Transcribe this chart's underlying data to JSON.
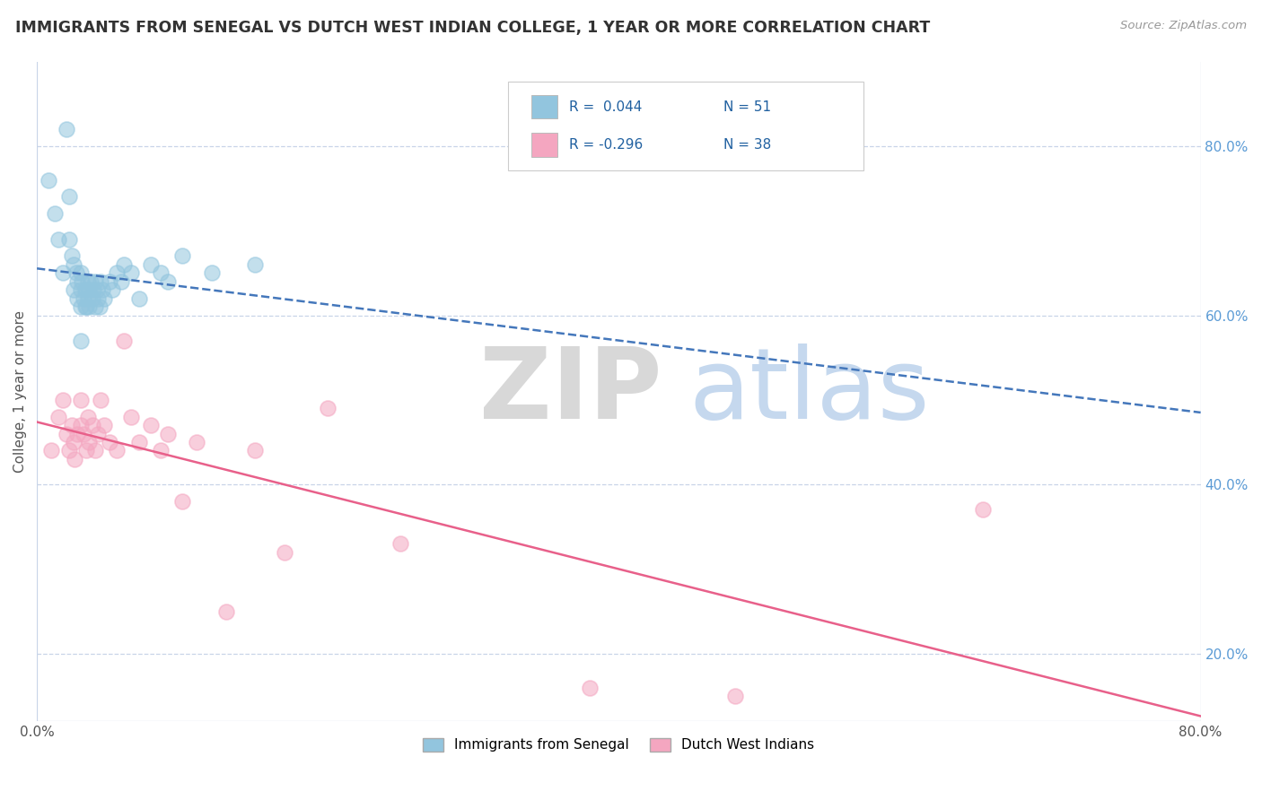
{
  "title": "IMMIGRANTS FROM SENEGAL VS DUTCH WEST INDIAN COLLEGE, 1 YEAR OR MORE CORRELATION CHART",
  "source_text": "Source: ZipAtlas.com",
  "ylabel": "College, 1 year or more",
  "xlim": [
    0.0,
    0.8
  ],
  "ylim": [
    0.12,
    0.9
  ],
  "x_tick_labels": [
    "0.0%",
    "80.0%"
  ],
  "x_tick_vals": [
    0.0,
    0.8
  ],
  "y_tick_labels_right": [
    "20.0%",
    "40.0%",
    "60.0%",
    "80.0%"
  ],
  "y_tick_values_right": [
    0.2,
    0.4,
    0.6,
    0.8
  ],
  "legend_r1": "R =  0.044",
  "legend_n1": "N = 51",
  "legend_r2": "R = -0.296",
  "legend_n2": "N = 38",
  "blue_color": "#92c5de",
  "pink_color": "#f4a6c0",
  "blue_line_color": "#4477bb",
  "pink_line_color": "#e8608a",
  "grid_color": "#c8d4e8",
  "blue_scatter_x": [
    0.008,
    0.012,
    0.015,
    0.018,
    0.02,
    0.022,
    0.022,
    0.024,
    0.025,
    0.025,
    0.027,
    0.028,
    0.028,
    0.03,
    0.03,
    0.03,
    0.031,
    0.032,
    0.033,
    0.033,
    0.034,
    0.034,
    0.035,
    0.035,
    0.036,
    0.036,
    0.037,
    0.038,
    0.039,
    0.04,
    0.04,
    0.041,
    0.042,
    0.043,
    0.044,
    0.045,
    0.046,
    0.05,
    0.052,
    0.055,
    0.058,
    0.06,
    0.065,
    0.07,
    0.078,
    0.085,
    0.09,
    0.1,
    0.12,
    0.15,
    0.03
  ],
  "blue_scatter_y": [
    0.76,
    0.72,
    0.69,
    0.65,
    0.82,
    0.74,
    0.69,
    0.67,
    0.66,
    0.63,
    0.65,
    0.64,
    0.62,
    0.65,
    0.63,
    0.61,
    0.64,
    0.62,
    0.63,
    0.61,
    0.63,
    0.61,
    0.64,
    0.62,
    0.63,
    0.61,
    0.64,
    0.62,
    0.63,
    0.64,
    0.61,
    0.63,
    0.62,
    0.61,
    0.64,
    0.63,
    0.62,
    0.64,
    0.63,
    0.65,
    0.64,
    0.66,
    0.65,
    0.62,
    0.66,
    0.65,
    0.64,
    0.67,
    0.65,
    0.66,
    0.57
  ],
  "pink_scatter_x": [
    0.01,
    0.015,
    0.018,
    0.02,
    0.022,
    0.024,
    0.025,
    0.026,
    0.028,
    0.03,
    0.03,
    0.032,
    0.034,
    0.035,
    0.036,
    0.038,
    0.04,
    0.042,
    0.044,
    0.046,
    0.05,
    0.055,
    0.06,
    0.065,
    0.07,
    0.078,
    0.085,
    0.09,
    0.1,
    0.11,
    0.13,
    0.15,
    0.17,
    0.2,
    0.25,
    0.38,
    0.48,
    0.65
  ],
  "pink_scatter_y": [
    0.44,
    0.48,
    0.5,
    0.46,
    0.44,
    0.47,
    0.45,
    0.43,
    0.46,
    0.5,
    0.47,
    0.46,
    0.44,
    0.48,
    0.45,
    0.47,
    0.44,
    0.46,
    0.5,
    0.47,
    0.45,
    0.44,
    0.57,
    0.48,
    0.45,
    0.47,
    0.44,
    0.46,
    0.38,
    0.45,
    0.25,
    0.44,
    0.32,
    0.49,
    0.33,
    0.16,
    0.15,
    0.37
  ]
}
